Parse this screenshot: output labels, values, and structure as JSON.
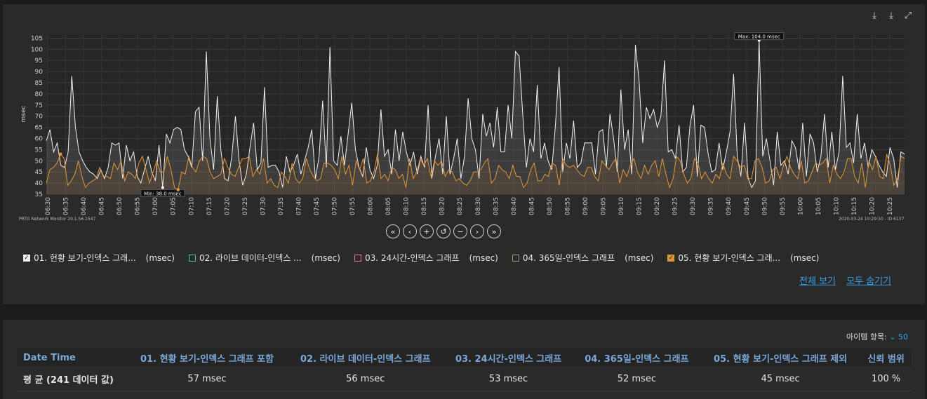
{
  "toolbar": {
    "download_icon_1": "download-icon",
    "download_icon_2": "download-icon",
    "expand_icon": "expand-icon"
  },
  "chart_data": {
    "type": "line",
    "ylabel": "msec",
    "ylim": [
      35,
      107
    ],
    "yticks": [
      35,
      40,
      45,
      50,
      55,
      60,
      65,
      70,
      75,
      80,
      85,
      90,
      95,
      100,
      105
    ],
    "x_labels": [
      "06:30",
      "06:35",
      "06:40",
      "06:45",
      "06:50",
      "06:55",
      "07:00",
      "07:05",
      "07:10",
      "07:15",
      "07:20",
      "07:25",
      "07:30",
      "07:35",
      "07:40",
      "07:45",
      "07:50",
      "07:55",
      "08:00",
      "08:05",
      "08:10",
      "08:15",
      "08:20",
      "08:25",
      "08:30",
      "08:35",
      "08:40",
      "08:45",
      "08:50",
      "08:55",
      "09:00",
      "09:05",
      "09:10",
      "09:15",
      "09:20",
      "09:25",
      "09:30",
      "09:35",
      "09:40",
      "09:45",
      "09:50",
      "09:55",
      "10:00",
      "10:05",
      "10:10",
      "10:15",
      "10:20",
      "10:25"
    ],
    "grid": true,
    "series": [
      {
        "name": "01. 현황 보기-인덱스 그래프 포함",
        "color": "#f2f2f2",
        "values": [
          59,
          64,
          54,
          58,
          48,
          47,
          54,
          88,
          65,
          54,
          50,
          47,
          45,
          44,
          42,
          46,
          42,
          47,
          58,
          57,
          58,
          42,
          57,
          50,
          54,
          43,
          40,
          46,
          52,
          45,
          41,
          57,
          38,
          62,
          58,
          64,
          65,
          64,
          55,
          52,
          47,
          72,
          74,
          50,
          99,
          60,
          46,
          79,
          55,
          42,
          41,
          52,
          70,
          50,
          39,
          44,
          56,
          67,
          46,
          49,
          83,
          47,
          48,
          48,
          45,
          38,
          52,
          45,
          48,
          53,
          44,
          50,
          56,
          64,
          42,
          52,
          77,
          47,
          101,
          50,
          48,
          61,
          48,
          62,
          76,
          55,
          47,
          43,
          56,
          46,
          42,
          48,
          73,
          52,
          55,
          44,
          64,
          50,
          63,
          54,
          48,
          54,
          44,
          52,
          47,
          75,
          42,
          52,
          60,
          44,
          70,
          44,
          51,
          60,
          42,
          52,
          78,
          60,
          55,
          42,
          71,
          61,
          67,
          56,
          74,
          54,
          54,
          75,
          60,
          99,
          97,
          71,
          47,
          60,
          54,
          84,
          51,
          58,
          50,
          46,
          66,
          92,
          45,
          58,
          51,
          68,
          47,
          49,
          58,
          58,
          58,
          44,
          63,
          64,
          47,
          71,
          60,
          45,
          82,
          55,
          64,
          44,
          102,
          86,
          58,
          74,
          69,
          73,
          65,
          70,
          95,
          54,
          55,
          51,
          66,
          45,
          47,
          66,
          75,
          43,
          66,
          65,
          53,
          45,
          46,
          58,
          46,
          54,
          63,
          89,
          52,
          43,
          67,
          42,
          38,
          41,
          104,
          52,
          60,
          50,
          39,
          63,
          48,
          50,
          44,
          59,
          56,
          46,
          67,
          43,
          62,
          58,
          45,
          52,
          71,
          47,
          63,
          46,
          54,
          88,
          56,
          58,
          49,
          71,
          51,
          58,
          47,
          55,
          52,
          48,
          45,
          43,
          56,
          51,
          38,
          54,
          53
        ]
      },
      {
        "name": "05. 현황 보기-인덱스 그래프 제외",
        "color": "#e0963a",
        "values": [
          40,
          46,
          47,
          49,
          53,
          51,
          39,
          41,
          44,
          50,
          43,
          38,
          40,
          41,
          42,
          47,
          43,
          43,
          42,
          49,
          46,
          50,
          41,
          45,
          44,
          42,
          49,
          52,
          46,
          40,
          45,
          50,
          45,
          45,
          52,
          46,
          38,
          37,
          45,
          44,
          52,
          47,
          45,
          50,
          52,
          51,
          45,
          42,
          43,
          44,
          51,
          47,
          44,
          43,
          47,
          51,
          51,
          52,
          43,
          46,
          44,
          51,
          40,
          42,
          39,
          38,
          45,
          43,
          40,
          49,
          42,
          40,
          42,
          51,
          46,
          43,
          41,
          42,
          49,
          49,
          48,
          46,
          42,
          52,
          44,
          48,
          39,
          50,
          46,
          51,
          40,
          41,
          45,
          53,
          42,
          44,
          41,
          47,
          46,
          42,
          44,
          38,
          51,
          42,
          45,
          51,
          48,
          51,
          43,
          50,
          48,
          50,
          43,
          46,
          45,
          41,
          42,
          40,
          39,
          41,
          45,
          45,
          46,
          49,
          51,
          40,
          42,
          48,
          46,
          45,
          42,
          48,
          43,
          43,
          38,
          40,
          46,
          49,
          41,
          41,
          44,
          43,
          49,
          48,
          39,
          51,
          48,
          47,
          48,
          46,
          44,
          43,
          47,
          47,
          43,
          41,
          50,
          48,
          46,
          49,
          51,
          40,
          46,
          43,
          48,
          51,
          45,
          42,
          48,
          44,
          48,
          50,
          43,
          51,
          44,
          38,
          42,
          52,
          50,
          44,
          40,
          42,
          51,
          49,
          42,
          45,
          42,
          40,
          44,
          42,
          49,
          44,
          42,
          52,
          50,
          47,
          48,
          42,
          42,
          50,
          51,
          47,
          40,
          41,
          46,
          47,
          42,
          48,
          52,
          47,
          44,
          42,
          50,
          40,
          41,
          45,
          49,
          48,
          49,
          51,
          40,
          48,
          44,
          42,
          45,
          51,
          51,
          43,
          40,
          49,
          38,
          50,
          46,
          52,
          43,
          42,
          53,
          48,
          39,
          42,
          52,
          51
        ]
      }
    ],
    "annotations": {
      "max": "Max: 104.0 msec",
      "min": "Min: 38.0 msec"
    }
  },
  "footer": {
    "left": "PRTG Network Monitor 20.1.56.1547",
    "right": "2020-03-24 10:29:10 - ID 6137"
  },
  "zoom": {
    "buttons": [
      "«",
      "‹",
      "+",
      "↺",
      "−",
      "›",
      "»"
    ]
  },
  "legend": [
    {
      "label": "01. 현황 보기-인덱스 그래...",
      "unit": "(msec)",
      "checked": true,
      "color": "#f2f2f2"
    },
    {
      "label": "02. 라이브 데이터-인덱스 ...",
      "unit": "(msec)",
      "checked": false,
      "color": "#4fc3d6"
    },
    {
      "label": "03. 24시간-인덱스 그래프",
      "unit": "(msec)",
      "checked": false,
      "color": "#e87ab0"
    },
    {
      "label": "04. 365일-인덱스 그래프",
      "unit": "(msec)",
      "checked": false,
      "color": "#a89a66"
    },
    {
      "label": "05. 현황 보기-인덱스 그래...",
      "unit": "(msec)",
      "checked": true,
      "color": "#e0963a"
    }
  ],
  "links": {
    "show_all": "전체 보기",
    "hide_all": "모두 숨기기"
  },
  "items": {
    "label": "아이템 항목:",
    "value": "50"
  },
  "table": {
    "headers": [
      "Date Time",
      "01. 현황 보기-인덱스 그래프 포함",
      "02. 라이브 데이터-인덱스 그래프",
      "03. 24시간-인덱스 그래프",
      "04. 365일-인덱스 그래프",
      "05. 현황 보기-인덱스 그래프 제외",
      "신뢰 범위"
    ],
    "rows": [
      [
        "평 균 (241 데이터 값)",
        "57 msec",
        "56 msec",
        "53 msec",
        "52 msec",
        "45 msec",
        "100 %"
      ]
    ]
  }
}
